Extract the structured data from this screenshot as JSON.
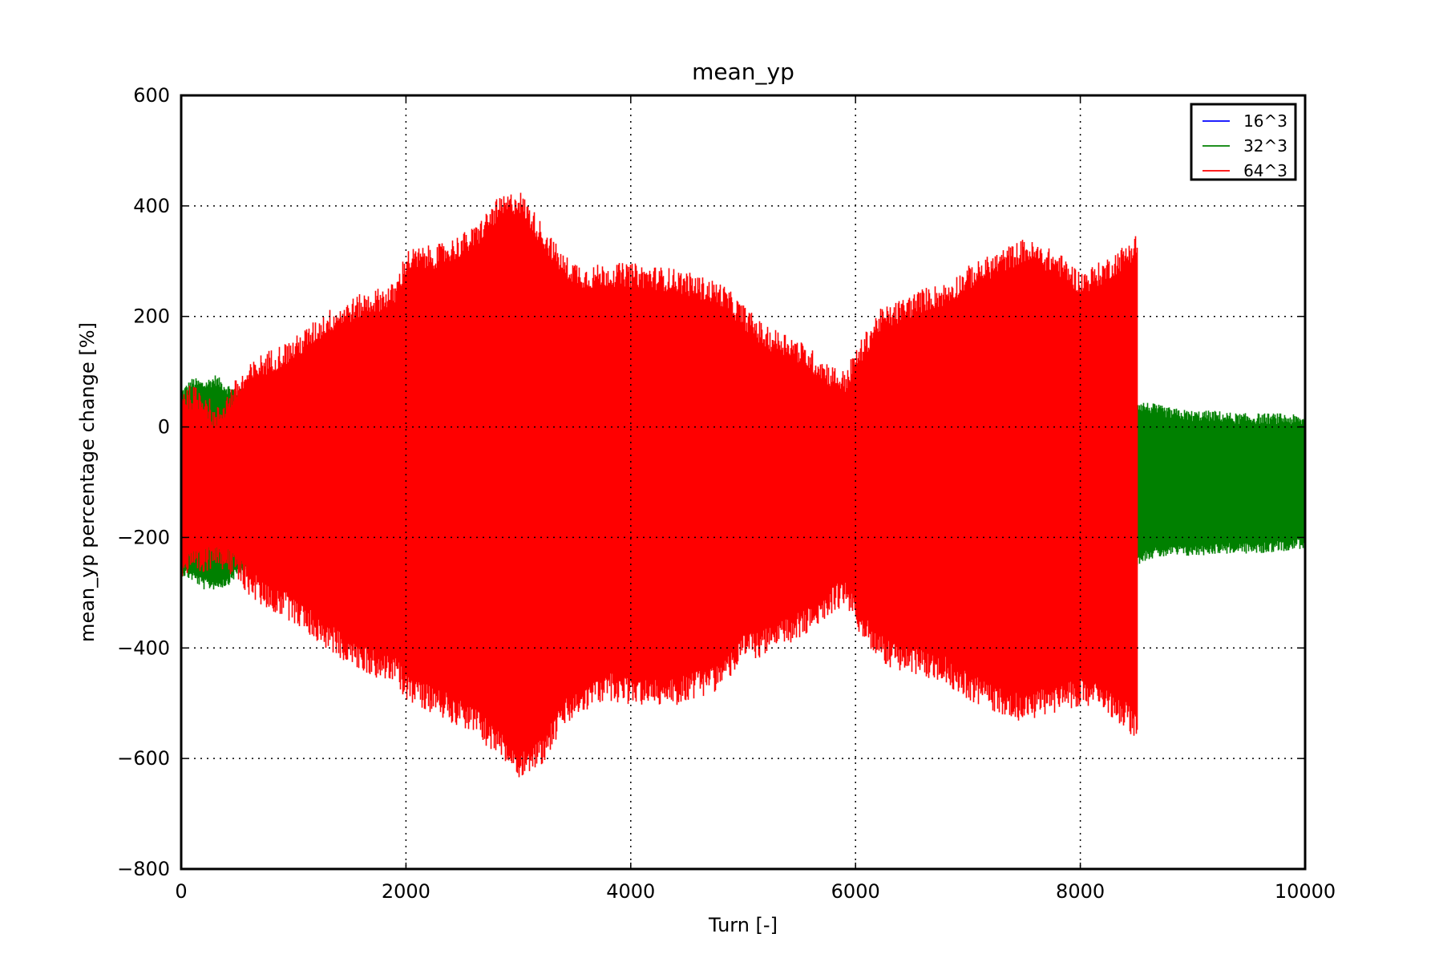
{
  "chart_data": {
    "type": "line",
    "title": "mean_yp",
    "xlabel": "Turn [-]",
    "ylabel": "mean_yp percentage change [%]",
    "xlim": [
      0,
      10000
    ],
    "ylim": [
      -800,
      600
    ],
    "xticks": [
      0,
      2000,
      4000,
      6000,
      8000,
      10000
    ],
    "yticks": [
      -800,
      -600,
      -400,
      -200,
      0,
      200,
      400,
      600
    ],
    "xtick_labels": [
      "0",
      "2000",
      "4000",
      "6000",
      "8000",
      "10000"
    ],
    "ytick_labels": [
      "−800",
      "−600",
      "−400",
      "−200",
      "0",
      "200",
      "400",
      "600"
    ],
    "grid": true,
    "legend_position": "top-right",
    "series": [
      {
        "name": "16^3",
        "color": "#0000ff",
        "points": []
      },
      {
        "name": "32^3",
        "color": "#008000",
        "x": [
          0,
          100,
          200,
          300,
          400,
          500,
          8500,
          8600,
          8800,
          9000,
          9200,
          9400,
          9600,
          9800,
          10000
        ],
        "upper": [
          60,
          80,
          75,
          85,
          70,
          60,
          40,
          35,
          25,
          20,
          20,
          15,
          15,
          15,
          10
        ],
        "lower": [
          -260,
          -270,
          -285,
          -285,
          -280,
          -260,
          -240,
          -230,
          -225,
          -225,
          -220,
          -220,
          -220,
          -215,
          -210
        ]
      },
      {
        "name": "64^3",
        "color": "#ff0000",
        "x": [
          0,
          200,
          300,
          500,
          700,
          1000,
          1300,
          1600,
          1900,
          2000,
          2300,
          2600,
          2800,
          3000,
          3200,
          3400,
          3600,
          3800,
          4000,
          4400,
          4800,
          5000,
          5200,
          5400,
          5600,
          5800,
          5900,
          6000,
          6200,
          6400,
          6600,
          6800,
          7000,
          7200,
          7500,
          7800,
          8000,
          8200,
          8400,
          8500
        ],
        "upper": [
          55,
          50,
          10,
          70,
          110,
          140,
          190,
          220,
          240,
          300,
          310,
          340,
          390,
          410,
          350,
          290,
          270,
          275,
          275,
          265,
          240,
          200,
          160,
          150,
          120,
          90,
          80,
          120,
          190,
          210,
          230,
          240,
          270,
          290,
          320,
          295,
          260,
          280,
          310,
          330
        ],
        "upper_jitter": 22,
        "lower": [
          -250,
          -250,
          -220,
          -260,
          -300,
          -330,
          -380,
          -420,
          -440,
          -470,
          -500,
          -530,
          -570,
          -610,
          -590,
          -520,
          -490,
          -470,
          -480,
          -480,
          -450,
          -400,
          -390,
          -370,
          -350,
          -310,
          -300,
          -340,
          -400,
          -420,
          -430,
          -440,
          -470,
          -490,
          -510,
          -490,
          -480,
          -490,
          -520,
          -550
        ],
        "lower_jitter": 25
      }
    ]
  }
}
